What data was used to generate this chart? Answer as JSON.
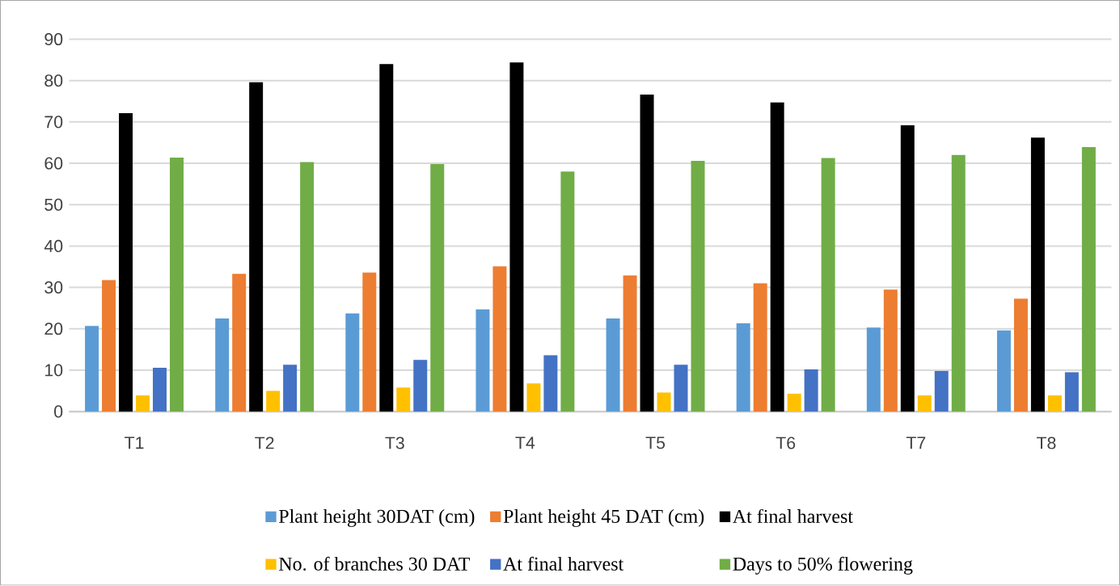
{
  "chart_data": {
    "type": "bar",
    "categories": [
      "T1",
      "T2",
      "T3",
      "T4",
      "T5",
      "T6",
      "T7",
      "T8"
    ],
    "series": [
      {
        "name": "Plant height 30DAT (cm)",
        "color": "#5b9bd5",
        "values": [
          20.7,
          22.5,
          23.7,
          24.7,
          22.5,
          21.3,
          20.3,
          19.6
        ]
      },
      {
        "name": "Plant height 45 DAT (cm)",
        "color": "#ed7d31",
        "values": [
          31.8,
          33.3,
          33.6,
          35.1,
          32.9,
          31.0,
          29.5,
          27.3
        ]
      },
      {
        "name": "At final harvest",
        "color": "#000000",
        "values": [
          72.1,
          79.6,
          84.0,
          84.4,
          76.6,
          74.7,
          69.2,
          66.2
        ]
      },
      {
        "name": "No. of branches 30 DAT",
        "color": "#ffc000",
        "values": [
          3.9,
          5.0,
          5.8,
          6.8,
          4.6,
          4.3,
          3.9,
          3.9
        ]
      },
      {
        "name": "At final harvest",
        "color": "#4472c4",
        "values": [
          10.6,
          11.3,
          12.5,
          13.6,
          11.3,
          10.2,
          9.8,
          9.5
        ]
      },
      {
        "name": "Days to 50% flowering",
        "color": "#70ad47",
        "values": [
          61.4,
          60.3,
          59.8,
          58.0,
          60.6,
          61.3,
          62.0,
          63.9
        ]
      }
    ],
    "ylim": [
      0,
      90
    ],
    "yticks": [
      0,
      10,
      20,
      30,
      40,
      50,
      60,
      70,
      80,
      90
    ],
    "grid": "y",
    "legend": "bottom"
  }
}
